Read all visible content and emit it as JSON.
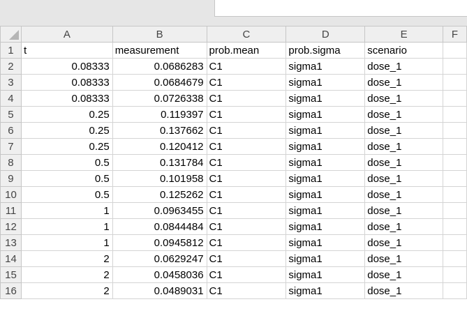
{
  "columns": [
    "A",
    "B",
    "C",
    "D",
    "E",
    "F"
  ],
  "rows": [
    {
      "n": "1",
      "a": "t",
      "b": "measurement",
      "c": "prob.mean",
      "d": "prob.sigma",
      "e": "scenario"
    },
    {
      "n": "2",
      "a": "0.08333",
      "b": "0.0686283",
      "c": "C1",
      "d": "sigma1",
      "e": "dose_1"
    },
    {
      "n": "3",
      "a": "0.08333",
      "b": "0.0684679",
      "c": "C1",
      "d": "sigma1",
      "e": "dose_1"
    },
    {
      "n": "4",
      "a": "0.08333",
      "b": "0.0726338",
      "c": "C1",
      "d": "sigma1",
      "e": "dose_1"
    },
    {
      "n": "5",
      "a": "0.25",
      "b": "0.119397",
      "c": "C1",
      "d": "sigma1",
      "e": "dose_1"
    },
    {
      "n": "6",
      "a": "0.25",
      "b": "0.137662",
      "c": "C1",
      "d": "sigma1",
      "e": "dose_1"
    },
    {
      "n": "7",
      "a": "0.25",
      "b": "0.120412",
      "c": "C1",
      "d": "sigma1",
      "e": "dose_1"
    },
    {
      "n": "8",
      "a": "0.5",
      "b": "0.131784",
      "c": "C1",
      "d": "sigma1",
      "e": "dose_1"
    },
    {
      "n": "9",
      "a": "0.5",
      "b": "0.101958",
      "c": "C1",
      "d": "sigma1",
      "e": "dose_1"
    },
    {
      "n": "10",
      "a": "0.5",
      "b": "0.125262",
      "c": "C1",
      "d": "sigma1",
      "e": "dose_1"
    },
    {
      "n": "11",
      "a": "1",
      "b": "0.0963455",
      "c": "C1",
      "d": "sigma1",
      "e": "dose_1"
    },
    {
      "n": "12",
      "a": "1",
      "b": "0.0844484",
      "c": "C1",
      "d": "sigma1",
      "e": "dose_1"
    },
    {
      "n": "13",
      "a": "1",
      "b": "0.0945812",
      "c": "C1",
      "d": "sigma1",
      "e": "dose_1"
    },
    {
      "n": "14",
      "a": "2",
      "b": "0.0629247",
      "c": "C1",
      "d": "sigma1",
      "e": "dose_1"
    },
    {
      "n": "15",
      "a": "2",
      "b": "0.0458036",
      "c": "C1",
      "d": "sigma1",
      "e": "dose_1"
    },
    {
      "n": "16",
      "a": "2",
      "b": "0.0489031",
      "c": "C1",
      "d": "sigma1",
      "e": "dose_1"
    }
  ]
}
